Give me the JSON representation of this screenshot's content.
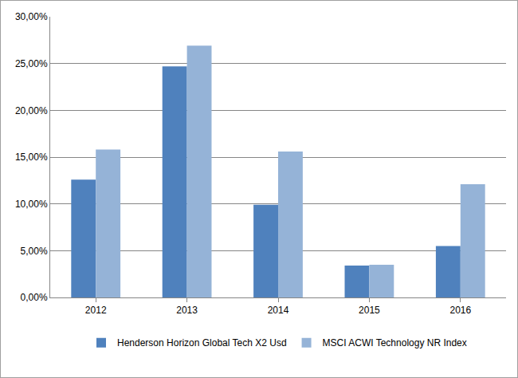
{
  "chart_data": {
    "type": "bar",
    "categories": [
      "2012",
      "2013",
      "2014",
      "2015",
      "2016"
    ],
    "series": [
      {
        "name": "Henderson Horizon Global Tech X2 Usd",
        "color": "#4f81bd",
        "values": [
          12.6,
          24.7,
          9.9,
          3.4,
          5.5
        ]
      },
      {
        "name": "MSCI ACWI Technology NR Index",
        "color": "#95b3d7",
        "values": [
          15.8,
          26.9,
          15.6,
          3.5,
          12.1
        ]
      }
    ],
    "ylim": [
      0,
      30
    ],
    "yticks": [
      {
        "value": 0,
        "label": "0,00%"
      },
      {
        "value": 5,
        "label": "5,00%"
      },
      {
        "value": 10,
        "label": "10,00%"
      },
      {
        "value": 15,
        "label": "15,00%"
      },
      {
        "value": 20,
        "label": "20,00%"
      },
      {
        "value": 25,
        "label": "25,00%"
      },
      {
        "value": 30,
        "label": "30,00%"
      }
    ],
    "grid": true,
    "legend": "bottom"
  }
}
